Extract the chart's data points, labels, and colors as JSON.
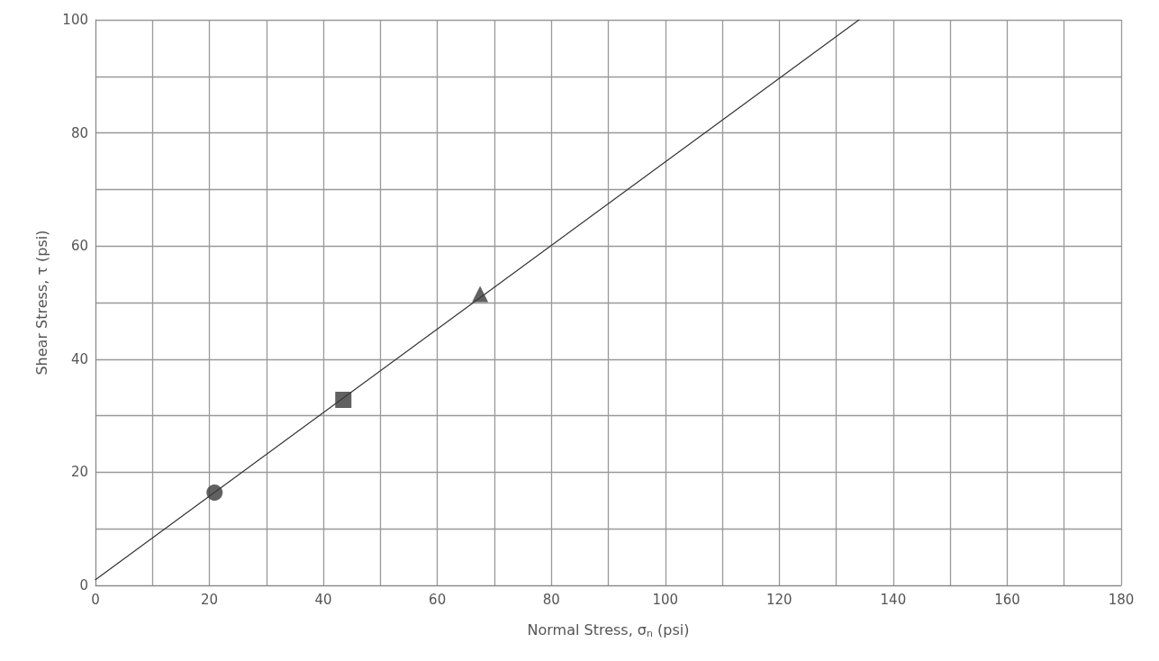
{
  "chart_data": {
    "type": "scatter",
    "xlabel": "Normal Stress, σ$_{n}$ (psi)",
    "ylabel": "Shear Stress, τ (psi)",
    "xlim": [
      0,
      180
    ],
    "ylim": [
      0,
      100
    ],
    "xticks": [
      0,
      {
        "value": 10,
        "label": null
      },
      20,
      {
        "value": 30,
        "label": null
      },
      40,
      {
        "value": 50,
        "label": null
      },
      60,
      {
        "value": 70,
        "label": null
      },
      80,
      {
        "value": 90,
        "label": null
      },
      100,
      {
        "value": 110,
        "label": null
      },
      120,
      {
        "value": 130,
        "label": null
      },
      140,
      {
        "value": 150,
        "label": null
      },
      160,
      {
        "value": 170,
        "label": null
      },
      180
    ],
    "yticks": [
      0,
      {
        "value": 10,
        "label": null
      },
      20,
      {
        "value": 30,
        "label": null
      },
      40,
      {
        "value": 50,
        "label": null
      },
      60,
      {
        "value": 70,
        "label": null
      },
      80,
      {
        "value": 90,
        "label": null
      },
      100
    ],
    "grid": true,
    "series": [
      {
        "type": "line",
        "color": "#333333",
        "x": [
          0,
          134
        ],
        "values": [
          1,
          100
        ],
        "marker": "none",
        "line_style": "solid"
      },
      {
        "color": "#3a3a3a",
        "x": [
          20.9
        ],
        "values": [
          16.4
        ],
        "marker": "circle"
      },
      {
        "color": "#3a3a3a",
        "x": [
          43.5
        ],
        "values": [
          32.8
        ],
        "marker": "square"
      },
      {
        "color": "#3a3a3a",
        "x": [
          67.5
        ],
        "values": [
          51.5
        ],
        "marker": "triangle"
      }
    ]
  }
}
